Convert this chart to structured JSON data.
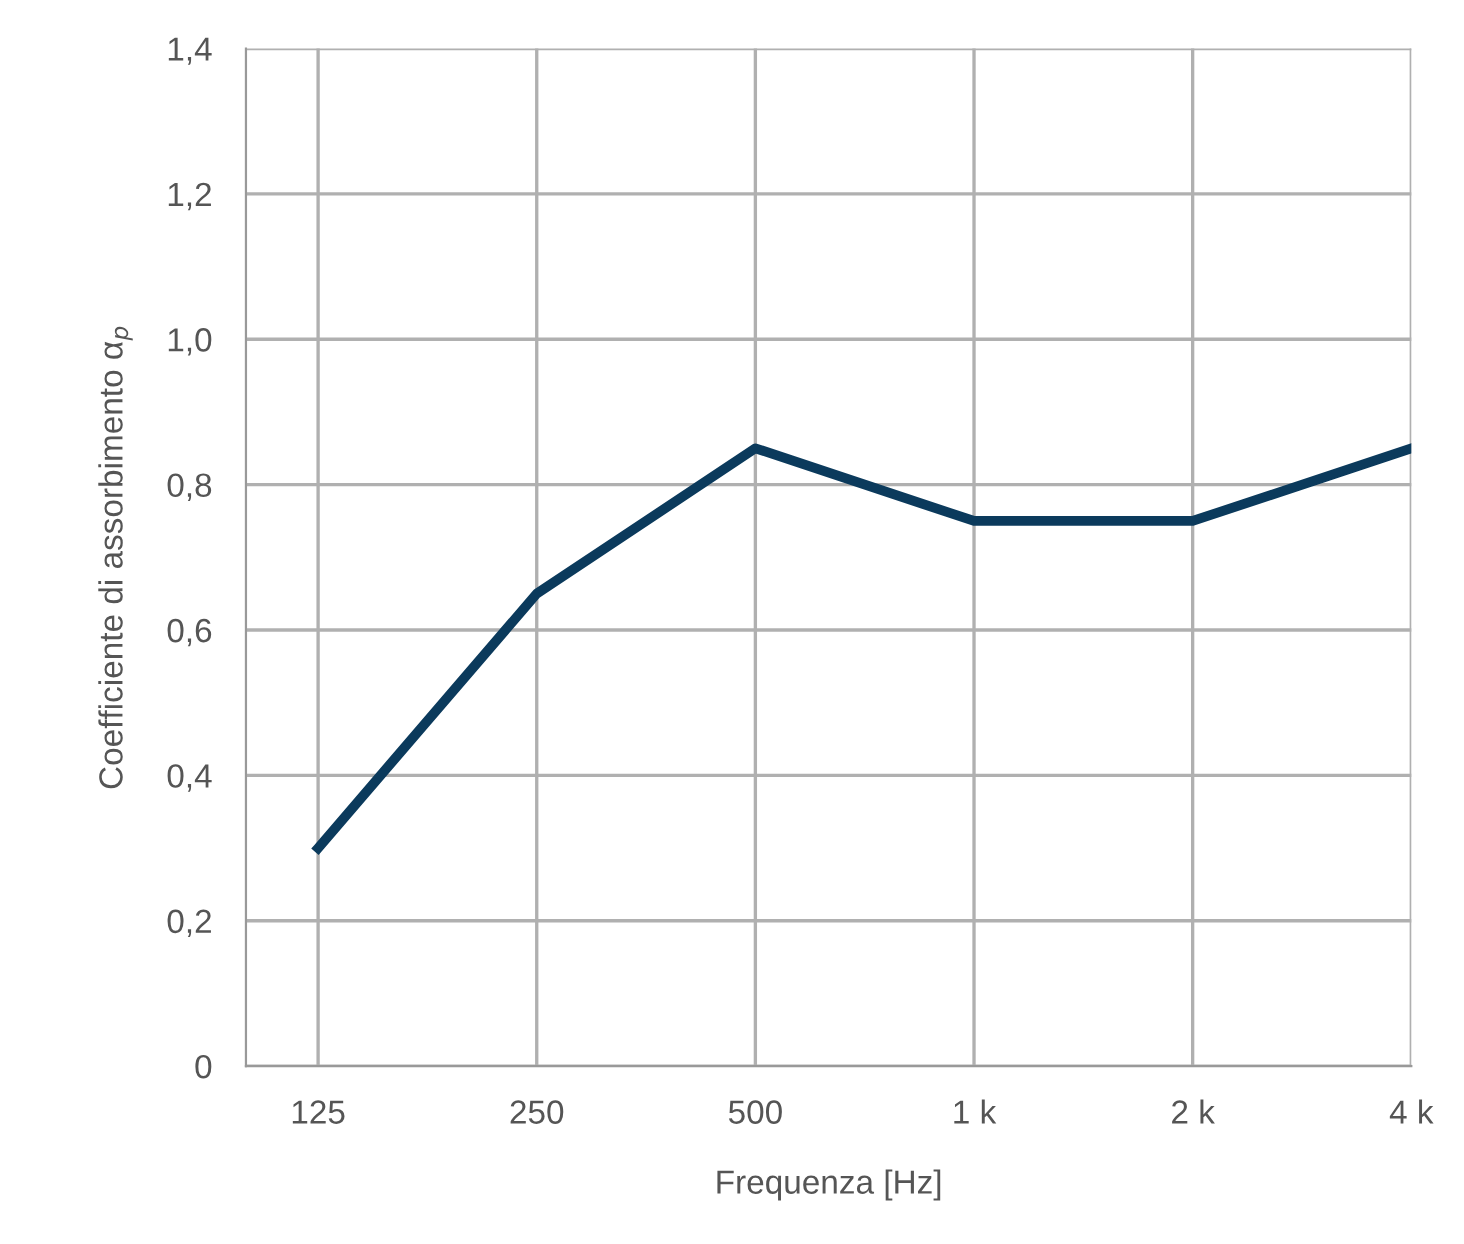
{
  "chart_data": {
    "type": "line",
    "xlabel": "Frequenza [Hz]",
    "ylabel": "Coefficiente di assorbimento α$_{p}$",
    "categories": [
      "125",
      "250",
      "500",
      "1 k",
      "2 k",
      "4 k"
    ],
    "series": [
      {
        "color": "#0b3a5c",
        "values": [
          0.3,
          0.65,
          0.85,
          0.75,
          0.75,
          0.85
        ]
      }
    ],
    "ylim": [
      0,
      1.4
    ],
    "yticks": [
      0,
      {
        "value": 0.2,
        "label": "0,2"
      },
      {
        "value": 0.4,
        "label": "0,4"
      },
      {
        "value": 0.6,
        "label": "0,6"
      },
      {
        "value": 0.8,
        "label": "0,8"
      },
      {
        "value": 1.0,
        "label": "1,0"
      },
      {
        "value": 1.2,
        "label": "1,2"
      },
      {
        "value": 1.4,
        "label": "1,4"
      }
    ],
    "grid": true,
    "marker": "none",
    "line_style": "solid",
    "legend": false
  }
}
